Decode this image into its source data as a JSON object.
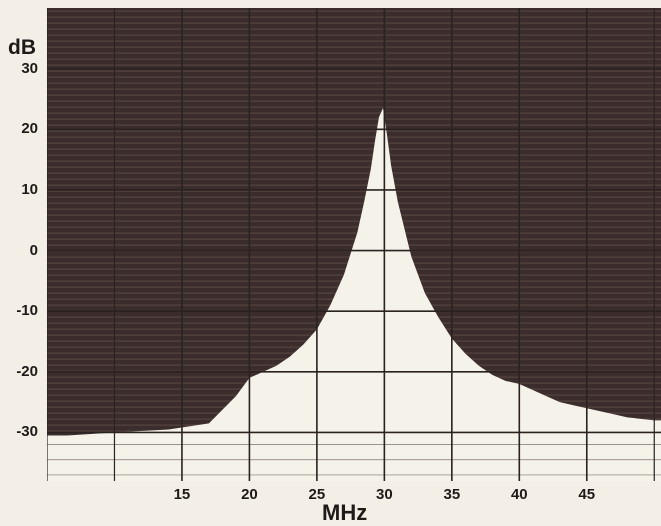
{
  "chart_data": {
    "type": "area",
    "xlabel": "MHz",
    "ylabel": "dB",
    "x_ticks": [
      15,
      20,
      25,
      30,
      35,
      40,
      45
    ],
    "y_ticks": [
      30,
      20,
      10,
      0,
      -10,
      -20,
      -30
    ],
    "xlim": [
      5,
      50.5
    ],
    "ylim": [
      -38,
      40
    ],
    "grid": true,
    "series": [
      {
        "x": [
          6.5,
          10,
          14,
          17,
          19,
          20,
          21,
          22,
          23,
          24,
          25,
          26,
          27,
          28,
          28.5,
          29,
          29.3,
          29.6,
          29.9,
          30.2,
          30.5,
          31,
          32,
          33,
          34,
          35,
          36,
          37,
          38,
          39,
          40,
          41,
          42,
          43,
          44,
          45,
          46,
          47,
          48,
          50
        ],
        "y": [
          -30.5,
          -30,
          -29.5,
          -28.5,
          -24,
          -21,
          -20,
          -19,
          -17.5,
          -15.5,
          -13,
          -9,
          -4,
          3,
          8,
          13.5,
          18,
          22,
          23.5,
          19,
          14,
          8,
          -1,
          -7,
          -11,
          -14.5,
          -17,
          -19,
          -20.5,
          -21.5,
          -22,
          -23,
          -24,
          -25,
          -25.5,
          -26,
          -26.5,
          -27,
          -27.5,
          -28
        ]
      }
    ],
    "colors": {
      "background": "#3a2c2a",
      "fill": "#f5f2e9",
      "grid_on_dark": "#261b19",
      "grid_on_light": "#2a2220",
      "text": "#1d1a18"
    }
  }
}
